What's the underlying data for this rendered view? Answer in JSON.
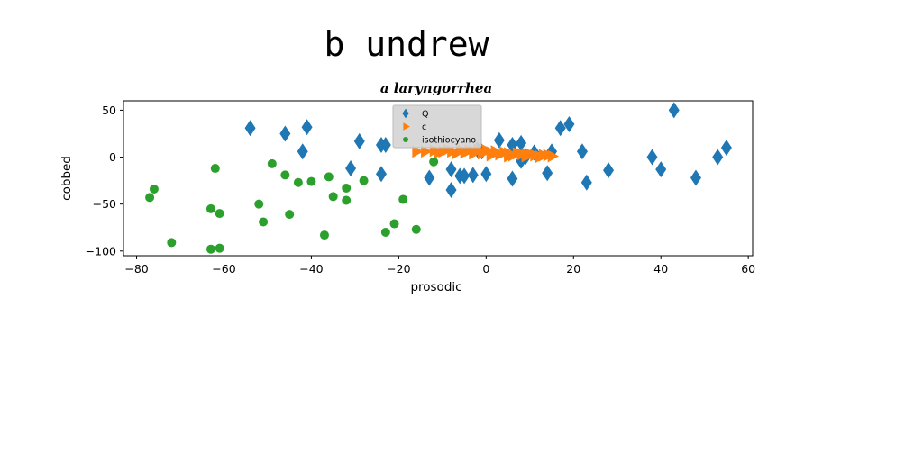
{
  "figure": {
    "suptitle": "b undrew"
  },
  "chart_data": {
    "type": "scatter",
    "title": "a laryngorrhea",
    "xlabel": "prosodic",
    "ylabel": "cobbed",
    "xlim": [
      -83,
      61
    ],
    "ylim": [
      -105,
      60
    ],
    "xticks": [
      -80,
      -60,
      -40,
      -20,
      0,
      20,
      40,
      60
    ],
    "yticks": [
      50,
      0,
      -50,
      -100
    ],
    "grid": false,
    "legend_position": "top-center",
    "series": [
      {
        "name": "Q",
        "marker": "diamond",
        "color": "#1f77b4",
        "points": [
          [
            -54,
            31
          ],
          [
            -46,
            25
          ],
          [
            -42,
            6
          ],
          [
            -41,
            32
          ],
          [
            -31,
            -12
          ],
          [
            -29,
            17
          ],
          [
            -24,
            13
          ],
          [
            -23,
            13
          ],
          [
            -24,
            -18
          ],
          [
            -13,
            -22
          ],
          [
            -8,
            -35
          ],
          [
            -8,
            -13
          ],
          [
            -6,
            -20
          ],
          [
            -5,
            -20
          ],
          [
            -3,
            -19
          ],
          [
            -2,
            8
          ],
          [
            -1,
            6
          ],
          [
            0,
            -18
          ],
          [
            3,
            18
          ],
          [
            6,
            13
          ],
          [
            6,
            -23
          ],
          [
            8,
            15
          ],
          [
            8,
            -4
          ],
          [
            9,
            0
          ],
          [
            11,
            5
          ],
          [
            14,
            -17
          ],
          [
            15,
            6
          ],
          [
            17,
            31
          ],
          [
            19,
            35
          ],
          [
            22,
            6
          ],
          [
            23,
            -27
          ],
          [
            28,
            -14
          ],
          [
            38,
            0
          ],
          [
            40,
            -13
          ],
          [
            43,
            50
          ],
          [
            48,
            -22
          ],
          [
            53,
            0
          ],
          [
            55,
            10
          ]
        ]
      },
      {
        "name": "c",
        "marker": "triangle-right",
        "color": "#ff7f0e",
        "points": [
          [
            -16,
            6
          ],
          [
            -14,
            6
          ],
          [
            -12,
            7
          ],
          [
            -10,
            6
          ],
          [
            -9,
            8
          ],
          [
            -8,
            6
          ],
          [
            -6,
            8
          ],
          [
            -5,
            5
          ],
          [
            -4,
            7
          ],
          [
            -3,
            6
          ],
          [
            -2,
            8
          ],
          [
            -1,
            4
          ],
          [
            0,
            7
          ],
          [
            1,
            5
          ],
          [
            2,
            6
          ],
          [
            3,
            3
          ],
          [
            4,
            5
          ],
          [
            5,
            4
          ],
          [
            6,
            2
          ],
          [
            7,
            4
          ],
          [
            8,
            3
          ],
          [
            9,
            1
          ],
          [
            10,
            3
          ],
          [
            11,
            2
          ],
          [
            12,
            1
          ],
          [
            13,
            2
          ],
          [
            14,
            2
          ],
          [
            15,
            1
          ],
          [
            -11,
            5
          ],
          [
            -7,
            4
          ],
          [
            -3,
            4
          ],
          [
            1,
            2
          ],
          [
            5,
            1
          ],
          [
            9,
            3
          ],
          [
            12,
            0
          ]
        ]
      },
      {
        "name": "isothiocyano",
        "marker": "circle",
        "color": "#2ca02c",
        "points": [
          [
            -77,
            -43
          ],
          [
            -76,
            -34
          ],
          [
            -72,
            -91
          ],
          [
            -63,
            -98
          ],
          [
            -63,
            -55
          ],
          [
            -62,
            -12
          ],
          [
            -61,
            -97
          ],
          [
            -61,
            -60
          ],
          [
            -52,
            -50
          ],
          [
            -51,
            -69
          ],
          [
            -49,
            -7
          ],
          [
            -46,
            -19
          ],
          [
            -45,
            -61
          ],
          [
            -43,
            -27
          ],
          [
            -40,
            -26
          ],
          [
            -37,
            -83
          ],
          [
            -36,
            -21
          ],
          [
            -35,
            -42
          ],
          [
            -32,
            -33
          ],
          [
            -32,
            -46
          ],
          [
            -28,
            -25
          ],
          [
            -23,
            -80
          ],
          [
            -21,
            -71
          ],
          [
            -19,
            -45
          ],
          [
            -16,
            -77
          ],
          [
            -12,
            -5
          ]
        ]
      }
    ]
  }
}
